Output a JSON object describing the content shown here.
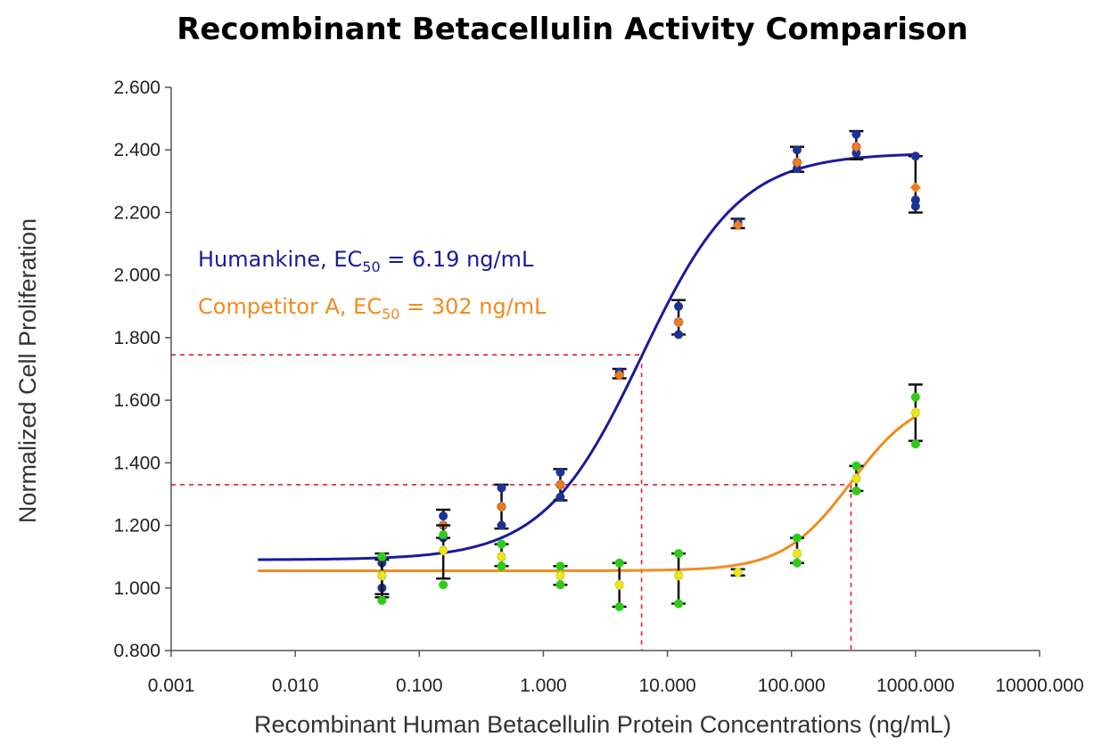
{
  "chart_data": {
    "type": "scatter",
    "title": "Recombinant Betacellulin Activity Comparison",
    "xlabel": "Recombinant Human Betacellulin Protein Concentrations (ng/mL)",
    "ylabel": "Normalized Cell Proliferation",
    "x_scale": "log",
    "xlim": [
      0.001,
      10000
    ],
    "ylim": [
      0.8,
      2.6
    ],
    "x_ticks": [
      "0.001",
      "0.010",
      "0.100",
      "1.000",
      "10.000",
      "100.000",
      "1000.000",
      "10000.000"
    ],
    "y_ticks": [
      "0.800",
      "1.000",
      "1.200",
      "1.400",
      "1.600",
      "1.800",
      "2.000",
      "2.200",
      "2.400",
      "2.600"
    ],
    "grid": false,
    "legend_position": "upper-left",
    "series": [
      {
        "label_prefix": "Humankine, EC",
        "label_sub": "50",
        "label_suffix": " = 6.19 ng/mL",
        "line_color": "#1a1a9c",
        "marker_color": "#1e3296",
        "mean_color": "#f07d1a",
        "curve": {
          "bottom": 1.09,
          "top": 2.39,
          "ec50": 6.19,
          "hill": 1.1,
          "x_start": 0.005,
          "x_end": 1000
        },
        "points": [
          {
            "x": 0.05,
            "mean": 1.04,
            "lo": 0.98,
            "hi": 1.09,
            "reps": [
              1.08,
              1.0,
              1.04
            ]
          },
          {
            "x": 0.156,
            "mean": 1.2,
            "lo": 1.16,
            "hi": 1.25,
            "reps": [
              1.23,
              1.16,
              1.2
            ]
          },
          {
            "x": 0.46,
            "mean": 1.26,
            "lo": 1.19,
            "hi": 1.33,
            "reps": [
              1.32,
              1.2,
              1.26
            ]
          },
          {
            "x": 1.37,
            "mean": 1.33,
            "lo": 1.28,
            "hi": 1.38,
            "reps": [
              1.37,
              1.29,
              1.33
            ]
          },
          {
            "x": 4.1,
            "mean": 1.68,
            "lo": 1.67,
            "hi": 1.7,
            "reps": [
              1.69,
              1.68,
              1.68
            ]
          },
          {
            "x": 12.3,
            "mean": 1.85,
            "lo": 1.81,
            "hi": 1.92,
            "reps": [
              1.9,
              1.81,
              1.85
            ]
          },
          {
            "x": 37,
            "mean": 2.16,
            "lo": 2.15,
            "hi": 2.18,
            "reps": [
              2.17,
              2.16,
              2.16
            ]
          },
          {
            "x": 111,
            "mean": 2.36,
            "lo": 2.33,
            "hi": 2.41,
            "reps": [
              2.4,
              2.34,
              2.36
            ]
          },
          {
            "x": 333,
            "mean": 2.41,
            "lo": 2.37,
            "hi": 2.46,
            "reps": [
              2.45,
              2.39,
              2.41
            ]
          },
          {
            "x": 1000,
            "mean": 2.28,
            "lo": 2.2,
            "hi": 2.38,
            "reps": [
              2.38,
              2.24,
              2.22
            ]
          }
        ]
      },
      {
        "label_prefix": "Competitor A, EC",
        "label_sub": "50",
        "label_suffix": " = 302 ng/mL",
        "line_color": "#f28a1e",
        "marker_color": "#2ecc1a",
        "mean_color": "#f5e21a",
        "curve": {
          "bottom": 1.055,
          "top": 1.62,
          "ec50": 302,
          "hill": 1.6,
          "x_start": 0.005,
          "x_end": 1000
        },
        "points": [
          {
            "x": 0.05,
            "mean": 1.04,
            "lo": 0.97,
            "hi": 1.11,
            "reps": [
              1.1,
              0.96,
              1.04
            ]
          },
          {
            "x": 0.156,
            "mean": 1.12,
            "lo": 1.03,
            "hi": 1.2,
            "reps": [
              1.17,
              1.01,
              1.12
            ]
          },
          {
            "x": 0.46,
            "mean": 1.1,
            "lo": 1.07,
            "hi": 1.14,
            "reps": [
              1.14,
              1.07,
              1.1
            ]
          },
          {
            "x": 1.37,
            "mean": 1.04,
            "lo": 1.01,
            "hi": 1.07,
            "reps": [
              1.07,
              1.01,
              1.04
            ]
          },
          {
            "x": 4.1,
            "mean": 1.01,
            "lo": 0.94,
            "hi": 1.08,
            "reps": [
              1.08,
              0.94,
              1.01
            ]
          },
          {
            "x": 12.3,
            "mean": 1.04,
            "lo": 0.95,
            "hi": 1.11,
            "reps": [
              1.11,
              0.95,
              1.04
            ]
          },
          {
            "x": 37,
            "mean": 1.05,
            "lo": 1.04,
            "hi": 1.06,
            "reps": [
              1.05,
              1.05,
              1.05
            ]
          },
          {
            "x": 111,
            "mean": 1.11,
            "lo": 1.08,
            "hi": 1.16,
            "reps": [
              1.16,
              1.08,
              1.11
            ]
          },
          {
            "x": 333,
            "mean": 1.35,
            "lo": 1.31,
            "hi": 1.39,
            "reps": [
              1.39,
              1.31,
              1.35
            ]
          },
          {
            "x": 1000,
            "mean": 1.56,
            "lo": 1.47,
            "hi": 1.65,
            "reps": [
              1.61,
              1.46,
              1.56
            ]
          }
        ]
      }
    ],
    "reference_lines": [
      {
        "series": 0,
        "x": 6.19,
        "y": 1.745
      },
      {
        "series": 1,
        "x": 302,
        "y": 1.33
      }
    ],
    "reference_color": "#e0202a"
  }
}
